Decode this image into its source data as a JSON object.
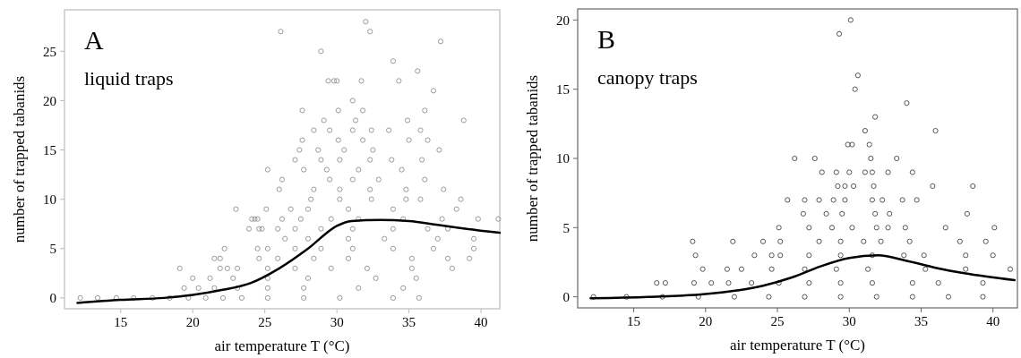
{
  "chart_data": [
    {
      "type": "scatter",
      "title": "A",
      "subtitle": "liquid traps",
      "xlabel": "air temperature T (°C)",
      "ylabel": "number of trapped tabanids",
      "xlim": [
        11.1,
        41.3
      ],
      "ylim": [
        -1.1,
        29.2
      ],
      "xticks": [
        15,
        20,
        25,
        30,
        35,
        40
      ],
      "yticks": [
        0,
        5,
        10,
        15,
        20,
        25
      ],
      "series": [
        {
          "marker": "circle",
          "color": "#9a9a9a",
          "x": [
            32.0,
            26.1,
            32.3,
            37.2,
            28.9,
            33.9,
            35.6,
            29.4,
            29.8,
            30.0,
            31.7,
            34.3,
            36.7,
            31.1,
            27.6,
            30.1,
            31.8,
            36.1,
            29.1,
            31.3,
            34.9,
            38.8,
            28.4,
            29.5,
            31.1,
            32.4,
            33.6,
            35.8,
            27.6,
            30.1,
            31.8,
            35.0,
            36.3,
            27.4,
            28.7,
            30.5,
            32.5,
            37.1,
            27.1,
            28.9,
            30.2,
            32.3,
            33.8,
            35.9,
            25.2,
            27.7,
            29.3,
            31.5,
            34.5,
            26.2,
            29.5,
            31.1,
            32.9,
            36.1,
            26.0,
            28.4,
            30.2,
            32.3,
            34.8,
            37.4,
            28.2,
            30.2,
            32.4,
            34.8,
            35.8,
            38.6,
            23.0,
            25.1,
            26.8,
            28.0,
            30.8,
            33.9,
            38.3,
            24.1,
            24.5,
            24.3,
            26.2,
            27.5,
            29.6,
            31.5,
            34.6,
            37.3,
            39.8,
            41.2,
            23.9,
            24.8,
            24.6,
            25.9,
            27.1,
            28.9,
            31.1,
            33.9,
            36.3,
            37.7,
            26.4,
            28.0,
            30.8,
            33.3,
            37.0,
            39.5,
            22.2,
            24.5,
            25.2,
            27.1,
            28.9,
            31.1,
            33.9,
            36.7,
            39.5,
            21.5,
            21.9,
            24.6,
            25.9,
            28.4,
            30.8,
            35.2,
            37.7,
            39.2,
            19.1,
            21.9,
            22.4,
            23.1,
            25.2,
            27.1,
            29.6,
            32.1,
            35.2,
            38.0,
            20.0,
            21.2,
            22.8,
            25.2,
            28.0,
            32.7,
            35.5,
            19.4,
            20.4,
            21.5,
            23.1,
            25.2,
            27.7,
            31.5,
            34.6,
            12.2,
            13.4,
            14.7,
            15.9,
            17.2,
            18.4,
            19.7,
            20.9,
            22.1,
            23.4,
            25.2,
            27.7,
            30.2,
            33.9,
            35.7
          ],
          "values": [
            28,
            27,
            27,
            26,
            25,
            24,
            23,
            22,
            22,
            22,
            22,
            22,
            21,
            20,
            19,
            19,
            19,
            19,
            18,
            18,
            18,
            18,
            17,
            17,
            17,
            17,
            17,
            17,
            16,
            16,
            16,
            16,
            16,
            15,
            15,
            15,
            15,
            15,
            14,
            14,
            14,
            14,
            14,
            14,
            13,
            13,
            13,
            13,
            13,
            12,
            12,
            12,
            12,
            12,
            11,
            11,
            11,
            11,
            11,
            11,
            10,
            10,
            10,
            10,
            10,
            10,
            9,
            9,
            9,
            9,
            9,
            9,
            9,
            8,
            8,
            8,
            8,
            8,
            8,
            8,
            8,
            8,
            8,
            8,
            7,
            7,
            7,
            7,
            7,
            7,
            7,
            7,
            7,
            7,
            6,
            6,
            6,
            6,
            6,
            6,
            5,
            5,
            5,
            5,
            5,
            5,
            5,
            5,
            5,
            4,
            4,
            4,
            4,
            4,
            4,
            4,
            4,
            4,
            3,
            3,
            3,
            3,
            3,
            3,
            3,
            3,
            3,
            3,
            2,
            2,
            2,
            2,
            2,
            2,
            2,
            1,
            1,
            1,
            1,
            1,
            1,
            1,
            1,
            0,
            0,
            0,
            0,
            0,
            0,
            0,
            0,
            0,
            0,
            0,
            0,
            0,
            0,
            0
          ]
        },
        {
          "type": "line",
          "color": "#000000",
          "x": [
            12,
            15,
            18,
            20,
            22,
            24,
            26,
            28,
            30,
            31,
            33,
            35,
            37,
            39,
            41.3
          ],
          "values": [
            -0.5,
            -0.2,
            0,
            0.3,
            0.8,
            1.5,
            3,
            5,
            7.3,
            7.8,
            7.9,
            7.8,
            7.4,
            7,
            6.6
          ]
        }
      ]
    },
    {
      "type": "scatter",
      "title": "B",
      "subtitle": "canopy traps",
      "xlabel": "air temperature T (°C)",
      "ylabel": "number of trapped tabanids",
      "xlim": [
        11.1,
        41.7
      ],
      "ylim": [
        -0.8,
        20.8
      ],
      "xticks": [
        15,
        20,
        25,
        30,
        35,
        40
      ],
      "yticks": [
        0,
        5,
        10,
        15,
        20
      ],
      "series": [
        {
          "marker": "circle",
          "color": "#555555",
          "x": [
            30.1,
            29.3,
            30.6,
            30.4,
            34.0,
            31.8,
            31.1,
            36.0,
            29.9,
            30.2,
            31.4,
            26.2,
            27.6,
            31.5,
            33.3,
            28.1,
            29.1,
            30.0,
            31.1,
            31.6,
            32.7,
            34.4,
            29.2,
            29.7,
            30.3,
            31.7,
            35.8,
            38.6,
            25.7,
            26.9,
            27.9,
            28.9,
            29.7,
            31.6,
            32.3,
            33.7,
            34.7,
            26.8,
            28.4,
            29.5,
            31.8,
            32.8,
            38.2,
            25.1,
            27.2,
            28.8,
            30.2,
            31.9,
            32.7,
            33.9,
            36.7,
            40.1,
            25.2,
            27.9,
            29.4,
            31.0,
            32.2,
            34.2,
            37.7,
            39.5,
            19.1,
            21.9,
            24.0,
            19.3,
            23.4,
            24.6,
            25.2,
            27.2,
            29.4,
            31.6,
            33.8,
            35.2,
            38.1,
            40.0,
            19.8,
            21.5,
            22.5,
            24.6,
            26.9,
            29.1,
            31.3,
            35.3,
            38.1,
            41.2,
            16.6,
            17.2,
            19.2,
            20.4,
            21.6,
            23.2,
            25.1,
            27.2,
            29.4,
            31.6,
            34.4,
            36.2,
            39.3,
            12.2,
            14.5,
            17.0,
            19.5,
            22.0,
            24.4,
            26.9,
            29.4,
            31.9,
            34.4,
            36.9,
            39.3
          ],
          "values": [
            20,
            19,
            16,
            15,
            14,
            13,
            12,
            12,
            11,
            11,
            11,
            10,
            10,
            10,
            10,
            9,
            9,
            9,
            9,
            9,
            9,
            9,
            8,
            8,
            8,
            8,
            8,
            8,
            7,
            7,
            7,
            7,
            7,
            7,
            7,
            7,
            7,
            6,
            6,
            6,
            6,
            6,
            6,
            5,
            5,
            5,
            5,
            5,
            5,
            5,
            5,
            5,
            4,
            4,
            4,
            4,
            4,
            4,
            4,
            4,
            4,
            4,
            4,
            3,
            3,
            3,
            3,
            3,
            3,
            3,
            3,
            3,
            3,
            3,
            2,
            2,
            2,
            2,
            2,
            2,
            2,
            2,
            2,
            2,
            1,
            1,
            1,
            1,
            1,
            1,
            1,
            1,
            1,
            1,
            1,
            1,
            1,
            0,
            0,
            0,
            0,
            0,
            0,
            0,
            0,
            0,
            0,
            0,
            0
          ]
        },
        {
          "type": "line",
          "color": "#000000",
          "x": [
            12,
            16,
            20,
            24,
            26,
            28,
            30,
            32,
            34,
            36,
            38,
            41.5
          ],
          "values": [
            -0.1,
            0,
            0.2,
            0.8,
            1.4,
            2.2,
            2.8,
            3,
            2.6,
            2.1,
            1.7,
            1.2
          ]
        }
      ]
    }
  ]
}
